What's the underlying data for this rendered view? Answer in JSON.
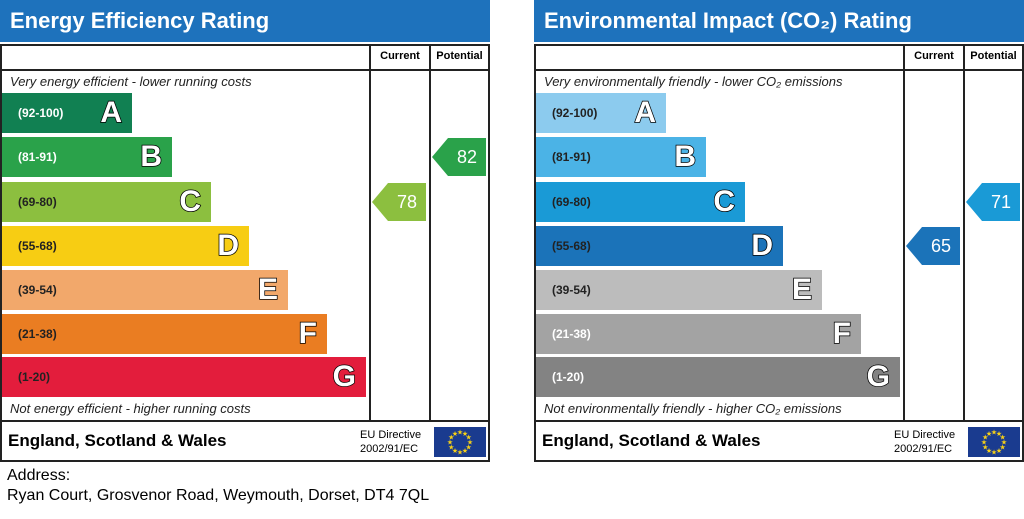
{
  "chart_data": [
    {
      "type": "bar",
      "title": "Energy Efficiency Rating",
      "columns": [
        "Current",
        "Potential"
      ],
      "top_note": "Very energy efficient - lower running costs",
      "bottom_note": "Not energy efficient - higher running costs",
      "bands": [
        {
          "range": "(92-100)",
          "letter": "A",
          "color": "#118052",
          "text_color": "#ffffff"
        },
        {
          "range": "(81-91)",
          "letter": "B",
          "color": "#2aa24a",
          "text_color": "#ffffff"
        },
        {
          "range": "(69-80)",
          "letter": "C",
          "color": "#8cbf3f",
          "text_color": "#222222"
        },
        {
          "range": "(55-68)",
          "letter": "D",
          "color": "#f7cd13",
          "text_color": "#222222"
        },
        {
          "range": "(39-54)",
          "letter": "E",
          "color": "#f2a86b",
          "text_color": "#222222"
        },
        {
          "range": "(21-38)",
          "letter": "F",
          "color": "#ea7d22",
          "text_color": "#222222"
        },
        {
          "range": "(1-20)",
          "letter": "G",
          "color": "#e31d3c",
          "text_color": "#222222"
        }
      ],
      "current": {
        "value": 78,
        "band": "C",
        "color": "#8cbf3f"
      },
      "potential": {
        "value": 82,
        "band": "B",
        "color": "#2aa24a"
      },
      "footer": "England, Scotland & Wales",
      "directive": [
        "EU Directive",
        "2002/91/EC"
      ]
    },
    {
      "type": "bar",
      "title": "Environmental Impact (CO₂) Rating",
      "columns": [
        "Current",
        "Potential"
      ],
      "top_note": "Very environmentally friendly - lower CO₂ emissions",
      "bottom_note": "Not environmentally friendly - higher CO₂ emissions",
      "bands": [
        {
          "range": "(92-100)",
          "letter": "A",
          "color": "#8ccbee",
          "text_color": "#222222"
        },
        {
          "range": "(81-91)",
          "letter": "B",
          "color": "#4bb3e6",
          "text_color": "#222222"
        },
        {
          "range": "(69-80)",
          "letter": "C",
          "color": "#1a9ad6",
          "text_color": "#222222"
        },
        {
          "range": "(55-68)",
          "letter": "D",
          "color": "#1b73b9",
          "text_color": "#222222"
        },
        {
          "range": "(39-54)",
          "letter": "E",
          "color": "#bcbcbc",
          "text_color": "#222222"
        },
        {
          "range": "(21-38)",
          "letter": "F",
          "color": "#a3a3a3",
          "text_color": "#ffffff"
        },
        {
          "range": "(1-20)",
          "letter": "G",
          "color": "#838383",
          "text_color": "#ffffff"
        }
      ],
      "current": {
        "value": 65,
        "band": "D",
        "color": "#1b73b9"
      },
      "potential": {
        "value": 71,
        "band": "C",
        "color": "#1a9ad6"
      },
      "footer": "England, Scotland & Wales",
      "directive": [
        "EU Directive",
        "2002/91/EC"
      ]
    }
  ],
  "address": {
    "label": "Address:",
    "line": "Ryan Court, Grosvenor Road, Weymouth, Dorset, DT4 7QL"
  }
}
